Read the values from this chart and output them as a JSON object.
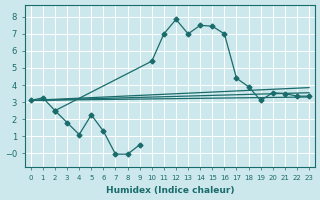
{
  "xlabel": "Humidex (Indice chaleur)",
  "bg_color": "#cce8ec",
  "grid_color": "#ffffff",
  "line_color": "#1a6b6b",
  "xlim": [
    -0.5,
    23.5
  ],
  "ylim": [
    -0.8,
    8.7
  ],
  "xticks": [
    0,
    1,
    2,
    3,
    4,
    5,
    6,
    7,
    8,
    9,
    10,
    11,
    12,
    13,
    14,
    15,
    16,
    17,
    18,
    19,
    20,
    21,
    22,
    23
  ],
  "yticks": [
    0,
    1,
    2,
    3,
    4,
    5,
    6,
    7,
    8
  ],
  "ytick_labels": [
    "−0",
    "1",
    "2",
    "3",
    "4",
    "5",
    "6",
    "7",
    "8"
  ],
  "curve_main_x": [
    0,
    1,
    2,
    10,
    11,
    12,
    13,
    14,
    15,
    16,
    17,
    18,
    19,
    20,
    21,
    22,
    23
  ],
  "curve_main_y": [
    3.1,
    3.25,
    2.5,
    5.4,
    7.0,
    7.85,
    7.0,
    7.5,
    7.45,
    7.0,
    4.4,
    3.9,
    3.1,
    3.55,
    3.5,
    3.35,
    3.35
  ],
  "curve_line1_x": [
    0,
    23
  ],
  "curve_line1_y": [
    3.1,
    3.85
  ],
  "curve_line2_x": [
    0,
    23
  ],
  "curve_line2_y": [
    3.1,
    3.55
  ],
  "curve_line3_x": [
    0,
    23
  ],
  "curve_line3_y": [
    3.1,
    3.3
  ],
  "curve_low_x": [
    2,
    3,
    4,
    5,
    6,
    7,
    8,
    9
  ],
  "curve_low_y": [
    2.5,
    1.8,
    1.1,
    2.25,
    1.3,
    -0.05,
    -0.05,
    0.5
  ]
}
